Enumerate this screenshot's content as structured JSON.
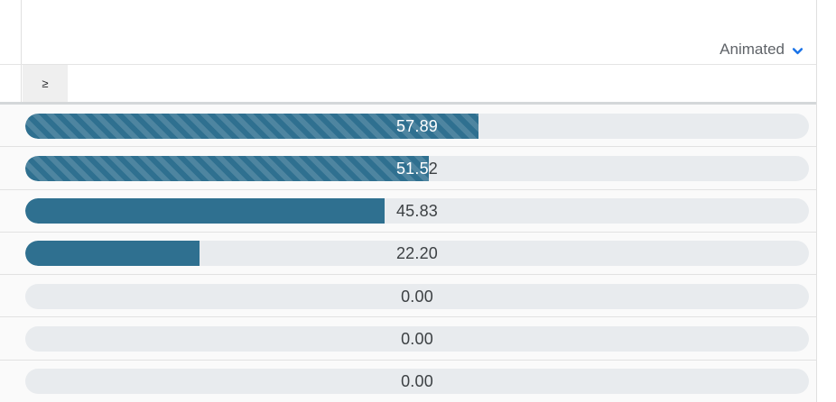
{
  "toolbar": {
    "animated_label": "Animated",
    "accent_color": "#1a73e8",
    "label_color": "#5f6368"
  },
  "filter_header": {
    "operator": "≥"
  },
  "chart_data": {
    "type": "bar",
    "orientation": "horizontal",
    "title": "",
    "xlabel": "",
    "ylabel": "",
    "value_range": [
      0,
      100
    ],
    "grid": "row-separators-only",
    "bars": [
      {
        "label": "57.89",
        "value": 57.89,
        "striped": true
      },
      {
        "label": "51.52",
        "value": 51.52,
        "striped": true
      },
      {
        "label": "45.83",
        "value": 45.83,
        "striped": false
      },
      {
        "label": "22.20",
        "value": 22.2,
        "striped": false
      },
      {
        "label": "0.00",
        "value": 0,
        "striped": false
      },
      {
        "label": "0.00",
        "value": 0,
        "striped": false
      },
      {
        "label": "0.00",
        "value": 0,
        "striped": false
      }
    ],
    "bar_color": "#2f7090",
    "stripe_color": "rgba(255,255,255,0.15)",
    "track_color": "#e8ebee",
    "label_color_on_fill": "#ffffff",
    "label_color_on_track": "#3c4043"
  }
}
